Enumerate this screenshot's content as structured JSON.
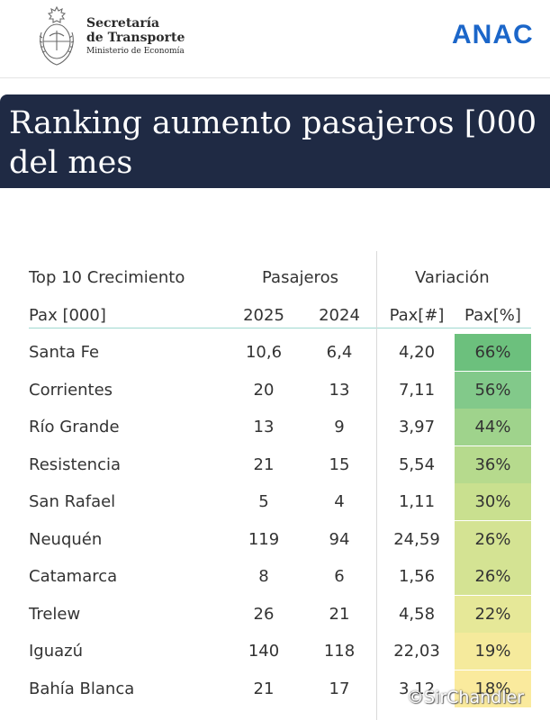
{
  "header": {
    "ministry_line1": "Secretaría",
    "ministry_line2": "de Transporte",
    "ministry_line3": "Ministerio de Economía",
    "brand": "ANAC"
  },
  "title": "Ranking aumento pasajeros [000\ndel mes",
  "table": {
    "group_header_left": "Top 10 Crecimiento",
    "group_header_pax": "Pasajeros",
    "group_header_var": "Variación",
    "col_city": "Pax [000]",
    "col_2025": "2025",
    "col_2024": "2024",
    "col_pax_abs": "Pax[#]",
    "col_pax_pct": "Pax[%]",
    "rows": [
      {
        "city": "Santa Fe",
        "y2025": "10,6",
        "y2024": "6,4",
        "pax": "4,20",
        "pct": "66%",
        "color": "#6cc07d"
      },
      {
        "city": "Corrientes",
        "y2025": "20",
        "y2024": "13",
        "pax": "7,11",
        "pct": "56%",
        "color": "#82c98a"
      },
      {
        "city": "Río Grande",
        "y2025": "13",
        "y2024": "9",
        "pax": "3,97",
        "pct": "44%",
        "color": "#9fd38c"
      },
      {
        "city": "Resistencia",
        "y2025": "21",
        "y2024": "15",
        "pax": "5,54",
        "pct": "36%",
        "color": "#b6da8d"
      },
      {
        "city": "San Rafael",
        "y2025": "5",
        "y2024": "4",
        "pax": "1,11",
        "pct": "30%",
        "color": "#c9e08f"
      },
      {
        "city": "Neuquén",
        "y2025": "119",
        "y2024": "94",
        "pax": "24,59",
        "pct": "26%",
        "color": "#d4e393"
      },
      {
        "city": "Catamarca",
        "y2025": "8",
        "y2024": "6",
        "pax": "1,56",
        "pct": "26%",
        "color": "#d4e393"
      },
      {
        "city": "Trelew",
        "y2025": "26",
        "y2024": "21",
        "pax": "4,58",
        "pct": "22%",
        "color": "#e6e898"
      },
      {
        "city": "Iguazú",
        "y2025": "140",
        "y2024": "118",
        "pax": "22,03",
        "pct": "19%",
        "color": "#f5ea9c"
      },
      {
        "city": "Bahía Blanca",
        "y2025": "21",
        "y2024": "17",
        "pax": "3,12",
        "pct": "18%",
        "color": "#faea9d"
      }
    ]
  },
  "watermark": "©SirChandler"
}
